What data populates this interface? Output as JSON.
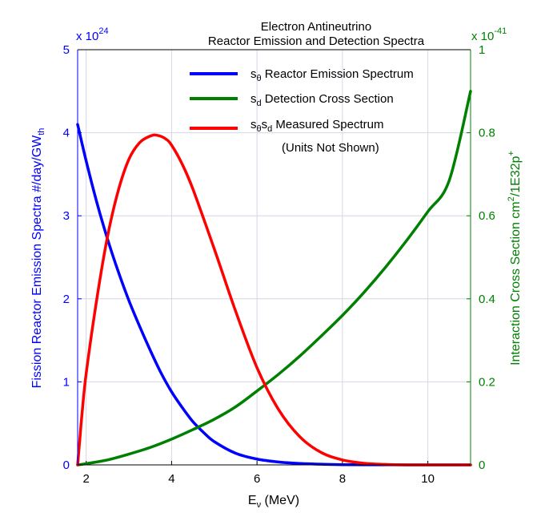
{
  "chart_data": {
    "type": "line",
    "title_line1": "Electron Antineutrino",
    "title_line2": "Reactor Emission and Detection Spectra",
    "xlabel_main": "E",
    "xlabel_sub": "ν",
    "xlabel_unit": " (MeV)",
    "ylabel_left_main": "Fission Reactor Emission Spectra #/day/GW",
    "ylabel_left_sub": "th",
    "ylabel_right_main": "Interaction Cross Section cm",
    "ylabel_right_sup": "2",
    "ylabel_right_rest": "/1E32p",
    "ylabel_right_sup2": "+",
    "left_multiplier_base": "x 10",
    "left_multiplier_exp": "24",
    "right_multiplier_base": "x 10",
    "right_multiplier_exp": "-41",
    "xlim": [
      1.8,
      11
    ],
    "ylim_left": [
      0,
      5
    ],
    "ylim_right": [
      0,
      1
    ],
    "x_ticks": [
      "2",
      "4",
      "6",
      "8",
      "10"
    ],
    "y_ticks_left": [
      "0",
      "1",
      "2",
      "3",
      "4",
      "5"
    ],
    "y_ticks_right": [
      "0",
      "0.2",
      "0.4",
      "0.6",
      "0.8",
      "1"
    ],
    "grid": true,
    "legend_position": "top-right",
    "colors": {
      "left_axis": "#0000ff",
      "right_axis": "#008000"
    },
    "series": [
      {
        "name_main": "s",
        "name_sub": "θ",
        "name_rest": " Reactor Emission Spectrum",
        "color": "#0000ff",
        "axis": "left",
        "x": [
          1.8,
          2.0,
          2.25,
          2.5,
          2.75,
          3.0,
          3.25,
          3.5,
          3.75,
          4.0,
          4.25,
          4.5,
          4.75,
          5.0,
          5.5,
          6.0,
          6.5,
          7.0,
          7.5,
          8.0,
          9.0,
          10.0,
          11.0
        ],
        "y": [
          4.1,
          3.66,
          3.16,
          2.72,
          2.33,
          1.98,
          1.67,
          1.38,
          1.11,
          0.88,
          0.69,
          0.52,
          0.39,
          0.28,
          0.14,
          0.07,
          0.035,
          0.017,
          0.008,
          0.003,
          0.001,
          0.0,
          0.0
        ]
      },
      {
        "name_main": "s",
        "name_sub": "d",
        "name_rest": " Detection Cross Section",
        "color": "#008000",
        "axis": "right",
        "x": [
          1.8,
          2.0,
          2.5,
          3.0,
          3.5,
          4.0,
          4.5,
          5.0,
          5.5,
          6.0,
          6.5,
          7.0,
          7.5,
          8.0,
          8.5,
          9.0,
          9.5,
          10.0,
          10.5,
          11.0
        ],
        "y": [
          0.0,
          0.003,
          0.012,
          0.026,
          0.042,
          0.062,
          0.085,
          0.11,
          0.14,
          0.178,
          0.218,
          0.262,
          0.31,
          0.36,
          0.415,
          0.475,
          0.54,
          0.61,
          0.685,
          0.9
        ]
      },
      {
        "name_main": "s",
        "name_sub": "θ",
        "name_mid": "s",
        "name_sub2": "d",
        "name_rest": " Measured Spectrum",
        "name_note": "(Units Not Shown)",
        "color": "#ff0000",
        "axis": "left",
        "x": [
          1.8,
          1.85,
          1.9,
          2.0,
          2.25,
          2.5,
          2.75,
          3.0,
          3.25,
          3.5,
          3.65,
          3.85,
          4.0,
          4.25,
          4.5,
          5.0,
          5.5,
          6.0,
          6.5,
          7.0,
          7.5,
          8.0,
          8.5,
          9.0,
          9.5,
          10.0,
          11.0
        ],
        "y": [
          0.0,
          0.3,
          0.6,
          1.1,
          2.0,
          2.75,
          3.3,
          3.68,
          3.88,
          3.96,
          3.97,
          3.93,
          3.85,
          3.62,
          3.32,
          2.6,
          1.85,
          1.17,
          0.67,
          0.34,
          0.15,
          0.06,
          0.02,
          0.006,
          0.0,
          0.0,
          0.0
        ]
      }
    ]
  }
}
